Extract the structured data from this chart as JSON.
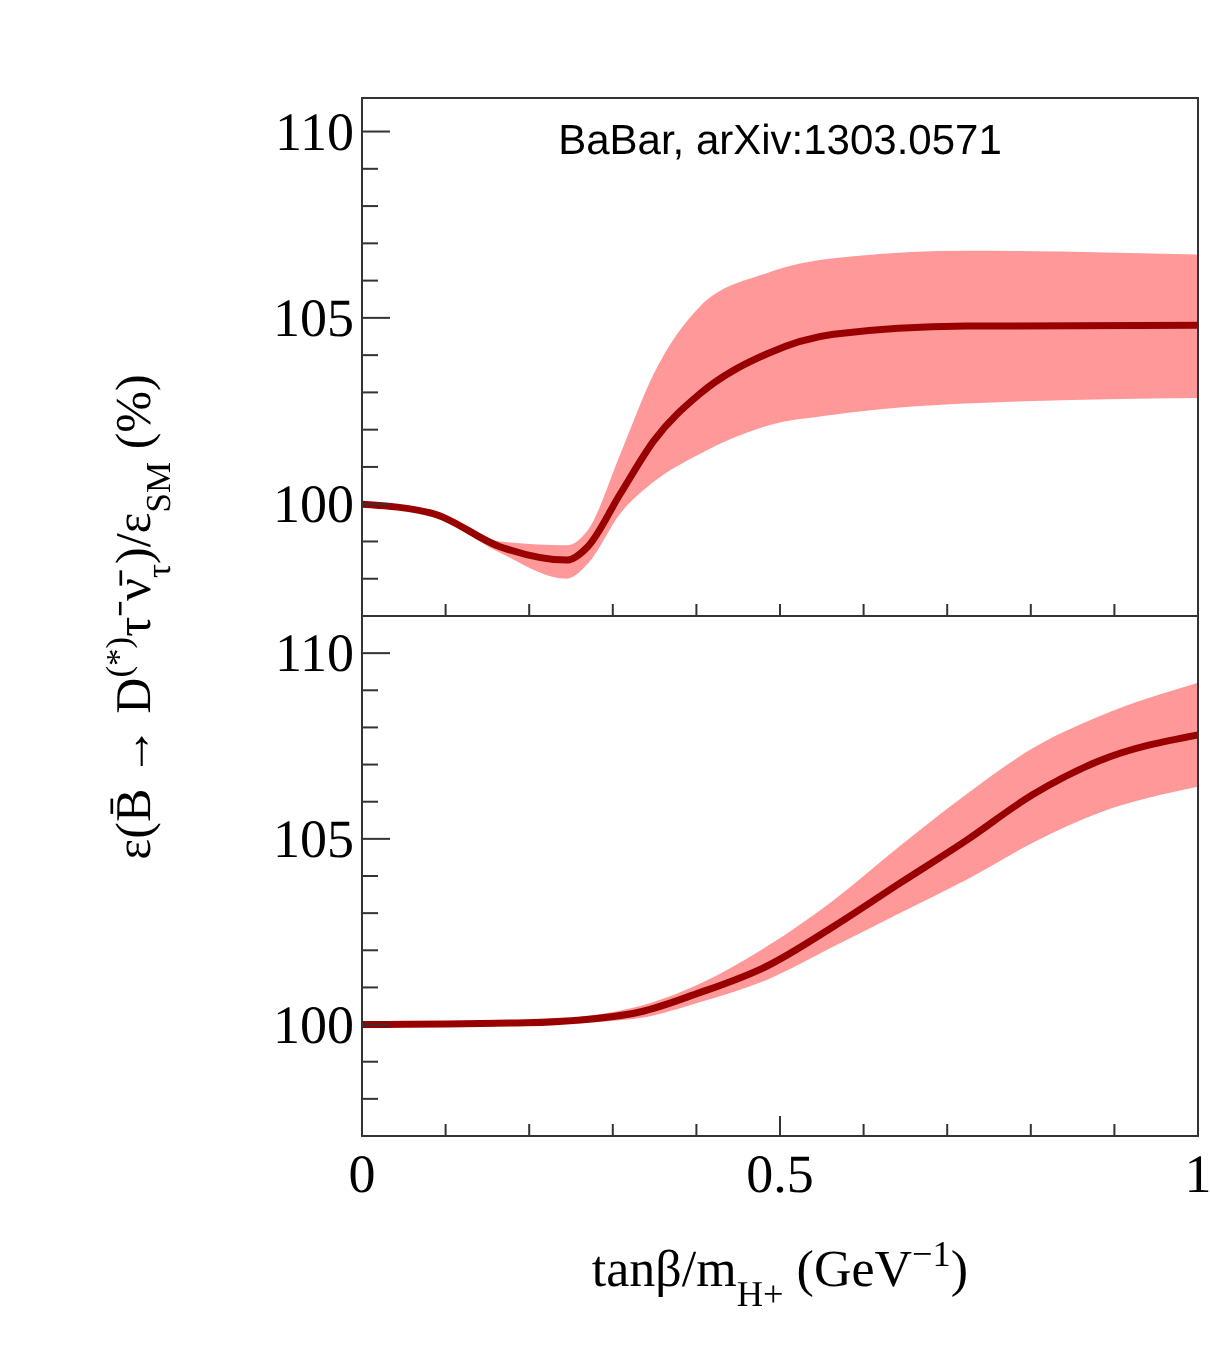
{
  "chart_data": [
    {
      "type": "line",
      "ylabel": "ε(B̄ → D$^{(*)}$τ⁻ν̄$_{τ}$)/ε$_{SM}$ (%)",
      "annotations": [
        "BaBar, arXiv:1303.0571"
      ],
      "x": [
        0,
        0.085,
        0.165,
        0.245,
        0.27,
        0.309,
        0.349,
        0.404,
        0.484,
        0.564,
        0.723,
        1
      ],
      "xlim": [
        0,
        1
      ],
      "xticks": [
        {
          "value": 0.1,
          "label": null
        },
        {
          "value": 0.2,
          "label": null
        },
        {
          "value": 0.3,
          "label": null
        },
        {
          "value": 0.4,
          "label": null
        },
        {
          "value": 0.5,
          "label": null
        },
        {
          "value": 0.6,
          "label": null
        },
        {
          "value": 0.7,
          "label": null
        },
        {
          "value": 0.8,
          "label": null
        },
        {
          "value": 0.9,
          "label": null
        }
      ],
      "ylim": [
        97,
        110.9
      ],
      "yticks": [
        {
          "value": 97,
          "label": null
        },
        {
          "value": 98,
          "label": null
        },
        {
          "value": 99,
          "label": null
        },
        100,
        {
          "value": 101,
          "label": null
        },
        {
          "value": 102,
          "label": null
        },
        {
          "value": 103,
          "label": null
        },
        {
          "value": 104,
          "label": null
        },
        105,
        {
          "value": 106,
          "label": null
        },
        {
          "value": 107,
          "label": null
        },
        {
          "value": 108,
          "label": null
        },
        {
          "value": 109,
          "label": null
        },
        110
      ],
      "tick_labels": "y",
      "series": [
        {
          "color": "#990000",
          "values": [
            100,
            99.75,
            98.86,
            98.5,
            98.86,
            100.28,
            101.7,
            102.96,
            104.03,
            104.56,
            104.78,
            104.8
          ],
          "lower": [
            100,
            99.7,
            98.7,
            98.0,
            98.4,
            99.75,
            100.6,
            101.35,
            102.1,
            102.4,
            102.7,
            102.85
          ],
          "upper": [
            100,
            99.8,
            99.0,
            98.9,
            99.3,
            101.35,
            103.5,
            105.3,
            106.2,
            106.6,
            106.8,
            106.7
          ]
        }
      ]
    },
    {
      "type": "line",
      "xlabel": "tanβ/m$_{H+}$ (GeV$^{−1}$)",
      "x": [
        0,
        0.196,
        0.324,
        0.404,
        0.484,
        0.564,
        0.643,
        0.723,
        0.803,
        0.882,
        1
      ],
      "xlim": [
        0,
        1
      ],
      "xticks": [
        0,
        {
          "value": 0.1,
          "label": null
        },
        {
          "value": 0.2,
          "label": null
        },
        {
          "value": 0.3,
          "label": null
        },
        {
          "value": 0.4,
          "label": null
        },
        {
          "value": 0.5,
          "label": "0.5"
        },
        {
          "value": 0.6,
          "label": null
        },
        {
          "value": 0.7,
          "label": null
        },
        {
          "value": 0.8,
          "label": null
        },
        {
          "value": 0.9,
          "label": null
        },
        {
          "value": 1,
          "label": "1"
        }
      ],
      "ylim": [
        97,
        111
      ],
      "yticks": [
        {
          "value": 97,
          "label": null
        },
        {
          "value": 98,
          "label": null
        },
        {
          "value": 99,
          "label": null
        },
        100,
        {
          "value": 101,
          "label": null
        },
        {
          "value": 102,
          "label": null
        },
        {
          "value": 103,
          "label": null
        },
        {
          "value": 104,
          "label": null
        },
        105,
        {
          "value": 106,
          "label": null
        },
        {
          "value": 107,
          "label": null
        },
        {
          "value": 108,
          "label": null
        },
        {
          "value": 109,
          "label": null
        },
        110
      ],
      "series": [
        {
          "color": "#990000",
          "values": [
            100,
            100.05,
            100.3,
            100.86,
            101.57,
            102.64,
            103.8,
            104.96,
            106.2,
            107.1,
            107.8
          ],
          "lower": [
            100,
            100.0,
            100.15,
            100.6,
            101.2,
            102.1,
            103.0,
            103.9,
            104.9,
            105.7,
            106.4
          ],
          "upper": [
            100,
            100.1,
            100.45,
            101.1,
            102.1,
            103.35,
            104.8,
            106.2,
            107.45,
            108.3,
            109.2
          ]
        }
      ]
    }
  ]
}
